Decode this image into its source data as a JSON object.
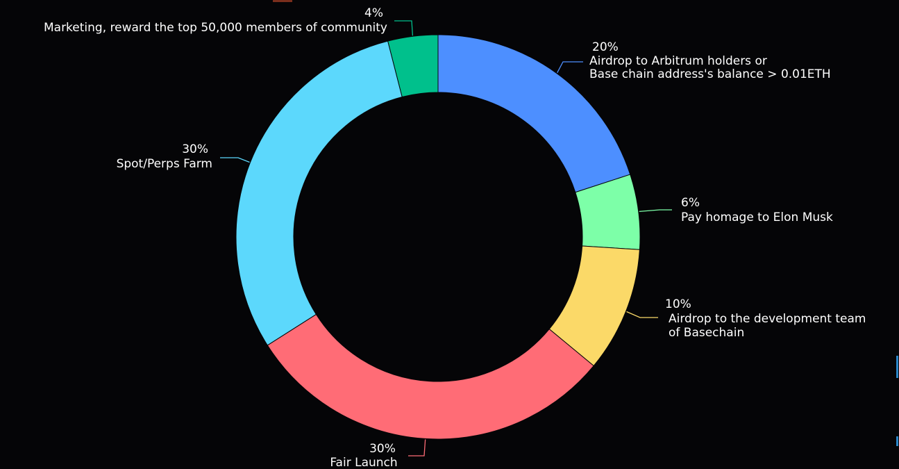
{
  "chart_data": {
    "type": "pie",
    "donut": true,
    "title": "",
    "slices": [
      {
        "name": "Airdrop to Arbitrum holders or Base chain address's balance > 0.01ETH",
        "label_lines": [
          "Airdrop to Arbitrum holders or",
          " Base chain address's balance > 0.01ETH"
        ],
        "value": 20,
        "percent_label": "20%",
        "color": "#4d8fff"
      },
      {
        "name": "Pay homage to Elon Musk",
        "label_lines": [
          "Pay homage to Elon Musk"
        ],
        "value": 6,
        "percent_label": "6%",
        "color": "#7dffa8"
      },
      {
        "name": "Airdrop to the development team of Basechain",
        "label_lines": [
          "Airdrop to the development team",
          "of Basechain"
        ],
        "value": 10,
        "percent_label": "10%",
        "color": "#fbd968"
      },
      {
        "name": "Fair Launch",
        "label_lines": [
          "Fair Launch"
        ],
        "value": 30,
        "percent_label": "30%",
        "color": "#ff6c76"
      },
      {
        "name": "Spot/Perps Farm",
        "label_lines": [
          "Spot/Perps Farm"
        ],
        "value": 30,
        "percent_label": "30%",
        "color": "#5cd8fc"
      },
      {
        "name": "Marketing, reward the top 50,000 members of community",
        "label_lines": [
          "Marketing, reward the top 50,000 members of community"
        ],
        "value": 4,
        "percent_label": "4%",
        "color": "#00c08c"
      }
    ]
  }
}
